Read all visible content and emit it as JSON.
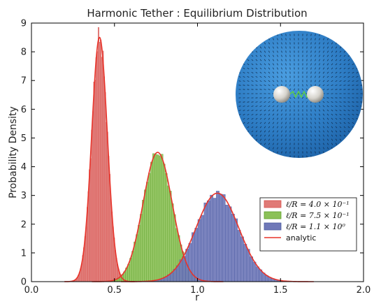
{
  "chart_data": {
    "type": "bar",
    "title": "Harmonic Tether : Equilibrium Distribution",
    "xlabel": "r",
    "ylabel": "Probability Density",
    "xlim": [
      0.0,
      2.0
    ],
    "ylim": [
      0,
      9
    ],
    "xticks": [
      "0.0",
      "0.5",
      "1.0",
      "1.5",
      "2.0"
    ],
    "yticks": [
      "0",
      "1",
      "2",
      "3",
      "4",
      "5",
      "6",
      "7",
      "8",
      "9"
    ],
    "grid": false,
    "legend_position": "lower-right",
    "inset_image": "sphere-with-tethered-beads",
    "series": [
      {
        "name": "ℓ/R = 4.0 × 10⁻¹",
        "mean": 0.41,
        "sd": 0.047,
        "peak": 8.5,
        "color": "#d9534f",
        "fill": "#e07a76"
      },
      {
        "name": "ℓ/R = 7.5 × 10⁻¹",
        "mean": 0.76,
        "sd": 0.088,
        "peak": 4.5,
        "color": "#5fa12c",
        "fill": "#8cc158"
      },
      {
        "name": "ℓ/R = 1.1 × 10⁰",
        "mean": 1.12,
        "sd": 0.129,
        "peak": 3.08,
        "color": "#4a5aa0",
        "fill": "#6f78b8"
      }
    ],
    "analytic": {
      "name": "analytic",
      "color": "#e8332a"
    }
  }
}
